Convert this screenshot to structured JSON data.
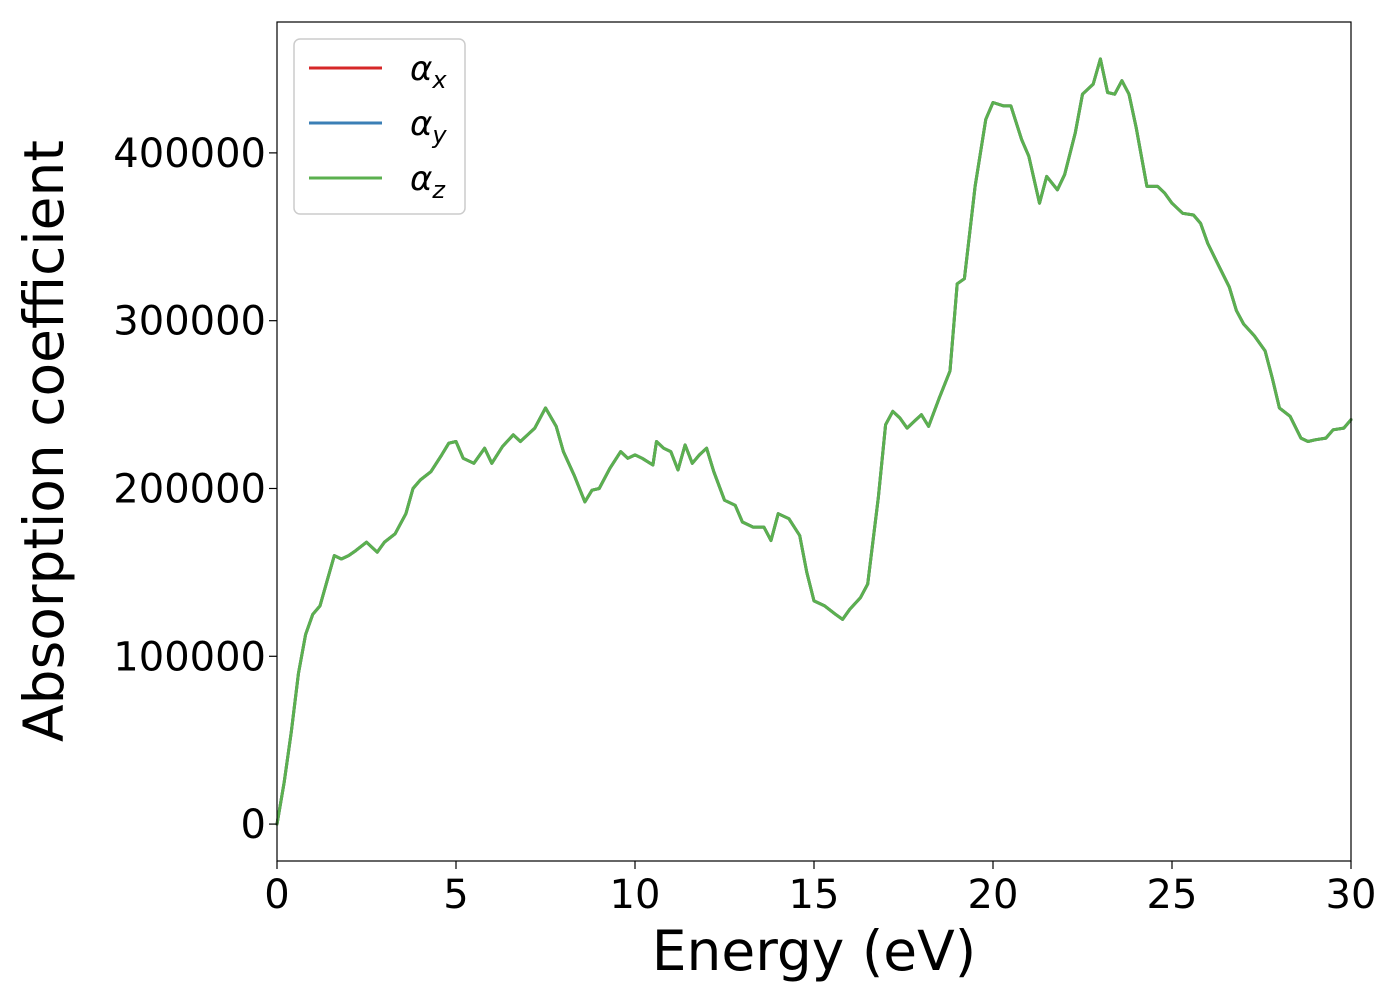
{
  "chart_data": {
    "type": "line",
    "xlabel": "Energy (eV)",
    "ylabel": "Absorption coefficient",
    "xlim": [
      0,
      30
    ],
    "ylim": [
      -22000,
      478000
    ],
    "xticks": [
      0,
      5,
      10,
      15,
      20,
      25,
      30
    ],
    "xtick_labels": [
      "0",
      "5",
      "10",
      "15",
      "20",
      "25",
      "30"
    ],
    "yticks": [
      0,
      100000,
      200000,
      300000,
      400000
    ],
    "ytick_labels": [
      "0",
      "100000",
      "200000",
      "300000",
      "400000"
    ],
    "grid": false,
    "legend_position": "top-left",
    "series": [
      {
        "name": "αx",
        "legend_symbol": "α",
        "legend_sub": "x",
        "color": "#d62728",
        "same_as_x": true
      },
      {
        "name": "αy",
        "legend_symbol": "α",
        "legend_sub": "y",
        "color": "#3b7fb6",
        "same_as_x": true
      },
      {
        "name": "αz",
        "legend_symbol": "α",
        "legend_sub": "z",
        "color": "#5bb04f",
        "same_as_x": true
      }
    ],
    "x": [
      0,
      0.2,
      0.4,
      0.6,
      0.8,
      1.0,
      1.2,
      1.4,
      1.6,
      1.8,
      2.0,
      2.2,
      2.5,
      2.8,
      3.0,
      3.3,
      3.6,
      3.8,
      4.0,
      4.3,
      4.6,
      4.8,
      5.0,
      5.2,
      5.5,
      5.8,
      6.0,
      6.3,
      6.6,
      6.8,
      7.0,
      7.2,
      7.5,
      7.8,
      8.0,
      8.3,
      8.6,
      8.8,
      9.0,
      9.3,
      9.6,
      9.8,
      10.0,
      10.2,
      10.5,
      10.6,
      10.8,
      11.0,
      11.2,
      11.4,
      11.6,
      11.8,
      12.0,
      12.2,
      12.5,
      12.8,
      13.0,
      13.3,
      13.6,
      13.8,
      14.0,
      14.3,
      14.6,
      14.8,
      15.0,
      15.3,
      15.6,
      15.8,
      16.0,
      16.3,
      16.5,
      16.8,
      17.0,
      17.2,
      17.4,
      17.6,
      17.8,
      18.0,
      18.2,
      18.5,
      18.8,
      19.0,
      19.2,
      19.5,
      19.8,
      20.0,
      20.3,
      20.5,
      20.8,
      21.0,
      21.3,
      21.5,
      21.8,
      22.0,
      22.3,
      22.5,
      22.8,
      23.0,
      23.2,
      23.4,
      23.6,
      23.8,
      24.0,
      24.3,
      24.6,
      24.8,
      25.0,
      25.3,
      25.6,
      25.8,
      26.0,
      26.3,
      26.6,
      26.8,
      27.0,
      27.3,
      27.6,
      27.8,
      28.0,
      28.3,
      28.6,
      28.8,
      29.0,
      29.3,
      29.5,
      29.8,
      30.0
    ],
    "y": [
      0,
      25000,
      55000,
      90000,
      113000,
      125000,
      130000,
      145000,
      160000,
      158000,
      160000,
      163000,
      168000,
      162000,
      168000,
      173000,
      185000,
      200000,
      205000,
      210000,
      220000,
      227000,
      228000,
      218000,
      215000,
      224000,
      215000,
      225000,
      232000,
      228000,
      232000,
      236000,
      248000,
      237000,
      222000,
      208000,
      192000,
      199000,
      200000,
      212000,
      222000,
      218000,
      220000,
      218000,
      214000,
      228000,
      224000,
      222000,
      211000,
      226000,
      215000,
      220000,
      224000,
      210000,
      193000,
      190000,
      180000,
      177000,
      177000,
      169000,
      185000,
      182000,
      172000,
      150000,
      133000,
      130000,
      125000,
      122000,
      128000,
      135000,
      143000,
      195000,
      238000,
      246000,
      242000,
      236000,
      240000,
      244000,
      237000,
      254000,
      270000,
      322000,
      325000,
      380000,
      420000,
      430000,
      428000,
      428000,
      408000,
      398000,
      370000,
      386000,
      378000,
      387000,
      412000,
      435000,
      441000,
      456000,
      436000,
      435000,
      443000,
      435000,
      415000,
      380000,
      380000,
      376000,
      370000,
      364000,
      363000,
      358000,
      346000,
      333000,
      320000,
      306000,
      298000,
      291000,
      282000,
      266000,
      248000,
      243000,
      230000,
      228000,
      229000,
      230000,
      235000,
      236000,
      241000
    ]
  }
}
